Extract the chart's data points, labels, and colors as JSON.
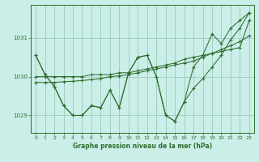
{
  "background_color": "#cceee8",
  "grid_color": "#99ccbb",
  "line_color": "#2d6e2d",
  "marker_color": "#2d6e2d",
  "title": "Graphe pression niveau de la mer (hPa)",
  "xlim": [
    -0.5,
    23.5
  ],
  "ylim": [
    1028.55,
    1031.85
  ],
  "yticks": [
    1029,
    1030,
    1031
  ],
  "xticks": [
    0,
    1,
    2,
    3,
    4,
    5,
    6,
    7,
    8,
    9,
    10,
    11,
    12,
    13,
    14,
    15,
    16,
    17,
    18,
    19,
    20,
    21,
    22,
    23
  ],
  "series": [
    [
      1030.55,
      1030.05,
      1029.75,
      1029.25,
      1029.0,
      1029.0,
      1029.25,
      1029.2,
      1029.65,
      1029.2,
      1030.1,
      1030.5,
      1030.55,
      1030.0,
      1029.0,
      1028.85,
      1029.35,
      1029.7,
      1029.95,
      1030.25,
      1030.55,
      1030.95,
      1031.25,
      1031.65
    ],
    [
      1030.0,
      1030.0,
      1030.0,
      1030.0,
      1030.0,
      1030.0,
      1030.05,
      1030.05,
      1030.05,
      1030.1,
      1030.1,
      1030.15,
      1030.2,
      1030.25,
      1030.3,
      1030.35,
      1030.45,
      1030.5,
      1030.55,
      1030.6,
      1030.65,
      1030.7,
      1030.75,
      1031.45
    ],
    [
      1029.85,
      1029.85,
      1029.85,
      1029.87,
      1029.88,
      1029.9,
      1029.92,
      1029.95,
      1030.0,
      1030.02,
      1030.05,
      1030.1,
      1030.15,
      1030.2,
      1030.25,
      1030.3,
      1030.35,
      1030.4,
      1030.5,
      1030.6,
      1030.7,
      1030.8,
      1030.9,
      1031.05
    ],
    [
      1030.55,
      1030.05,
      1029.75,
      1029.25,
      1029.0,
      1029.0,
      1029.25,
      1029.2,
      1029.65,
      1029.2,
      1030.1,
      1030.5,
      1030.55,
      1030.0,
      1029.0,
      1028.85,
      1029.35,
      1030.25,
      1030.55,
      1031.1,
      1030.85,
      1031.25,
      1031.45,
      1031.65
    ]
  ]
}
